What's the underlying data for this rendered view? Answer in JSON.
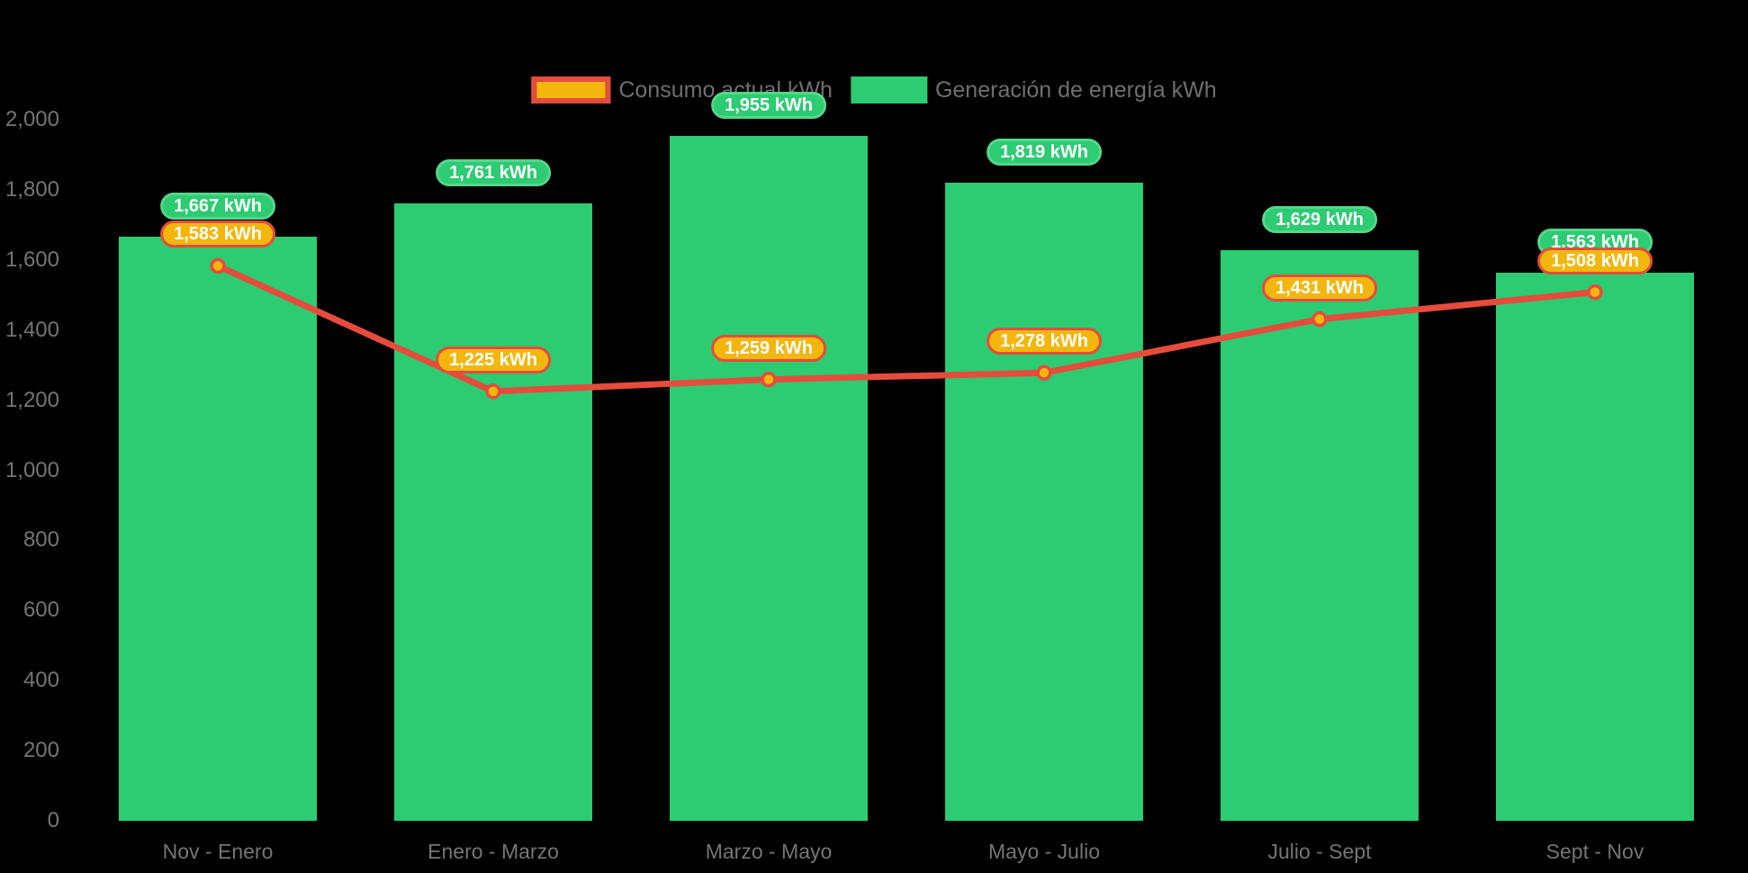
{
  "legend": {
    "consumo_label": "Consumo actual kWh",
    "generacion_label": "Generación de energía kWh"
  },
  "colors": {
    "background": "#000000",
    "bar_green": "#2dcb72",
    "bar_pill_border": "#55d68c",
    "line_red": "#e64c3c",
    "marker_gold": "#f2b60d",
    "axis_text_gray": "#757575",
    "legend_text_gray": "#6f6f6f",
    "pill_text": "#ffffff"
  },
  "chart_data": {
    "type": "bar+line",
    "title": "",
    "xlabel": "",
    "ylabel": "",
    "categories": [
      "Nov - Enero",
      "Enero - Marzo",
      "Marzo - Mayo",
      "Mayo - Julio",
      "Julio - Sept",
      "Sept - Nov"
    ],
    "series": [
      {
        "name": "Generación de energía kWh",
        "type": "bar",
        "color": "#2dcb72",
        "values": [
          1667,
          1761,
          1955,
          1819,
          1629,
          1563
        ],
        "labels": [
          "1,667 kWh",
          "1,761 kWh",
          "1,955 kWh",
          "1,819 kWh",
          "1,629 kWh",
          "1,563 kWh"
        ]
      },
      {
        "name": "Consumo actual kWh",
        "type": "line",
        "color": "#e64c3c",
        "marker_fill": "#f2b60d",
        "values": [
          1583,
          1225,
          1259,
          1278,
          1431,
          1508
        ],
        "labels": [
          "1,583 kWh",
          "1,225 kWh",
          "1,259 kWh",
          "1,278 kWh",
          "1,431 kWh",
          "1,508 kWh"
        ]
      }
    ],
    "ylim": [
      0,
      2000
    ],
    "ytick_values": [
      0,
      200,
      400,
      600,
      800,
      1000,
      1200,
      1400,
      1600,
      1800,
      2000
    ],
    "ytick_labels": [
      "0",
      "200",
      "400",
      "600",
      "800",
      "1,000",
      "1,200",
      "1,400",
      "1,600",
      "1,800",
      "2,000"
    ],
    "grid": false,
    "legend_position": "top-center"
  }
}
